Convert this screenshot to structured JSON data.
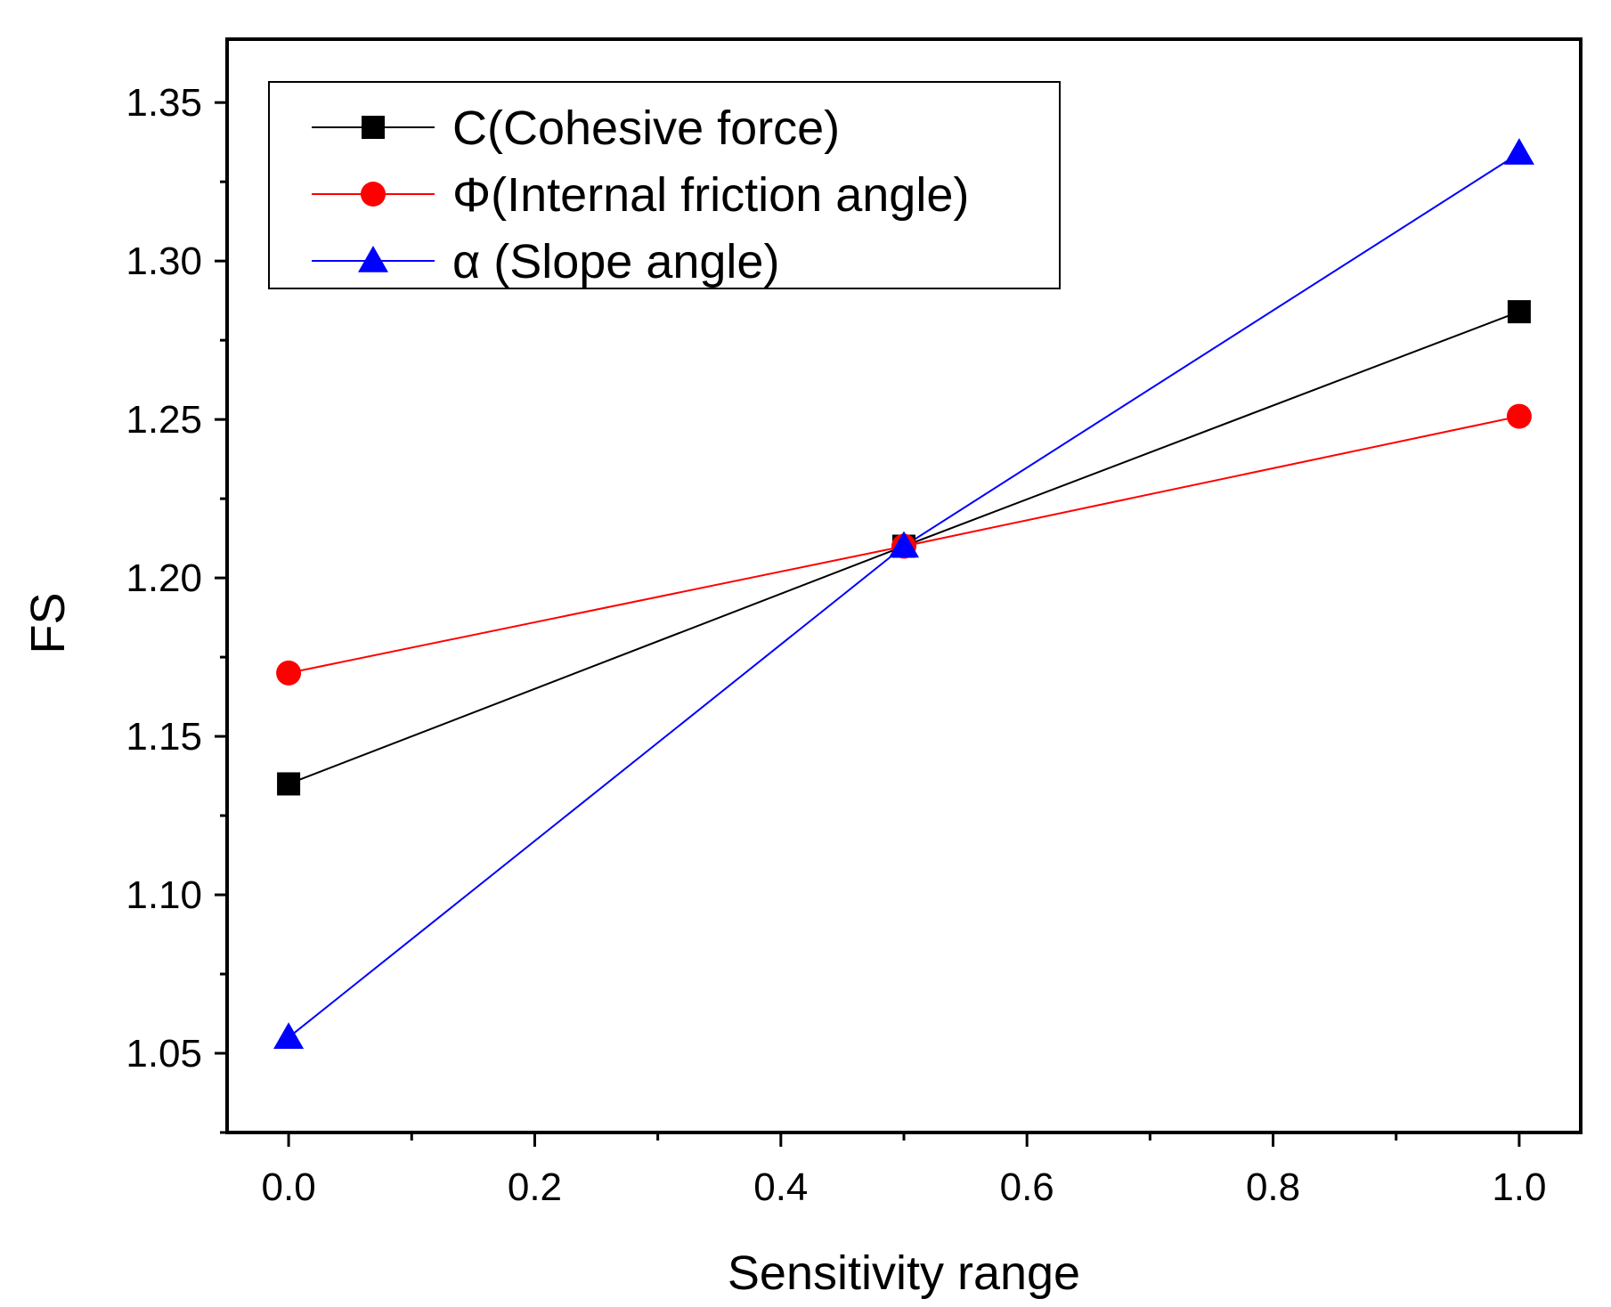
{
  "chart_data": {
    "type": "line",
    "title": "",
    "xlabel": "Sensitivity range",
    "ylabel": "FS",
    "xlim": [
      -0.05,
      1.05
    ],
    "ylim": [
      1.025,
      1.37
    ],
    "x": [
      0.0,
      0.5,
      1.0
    ],
    "xticks": [
      0.0,
      0.2,
      0.4,
      0.6,
      0.8,
      1.0
    ],
    "xtick_labels": [
      "0.0",
      "0.2",
      "0.4",
      "0.6",
      "0.8",
      "1.0"
    ],
    "yticks": [
      1.05,
      1.1,
      1.15,
      1.2,
      1.25,
      1.3,
      1.35
    ],
    "ytick_labels": [
      "1.05",
      "1.10",
      "1.15",
      "1.20",
      "1.25",
      "1.30",
      "1.35"
    ],
    "grid": false,
    "legend_position": "top-left",
    "series": [
      {
        "name": "C(Cohesive force)",
        "values": [
          1.135,
          1.21,
          1.284
        ],
        "color": "#000000",
        "marker": "square"
      },
      {
        "name": "Φ(Internal friction angle)",
        "values": [
          1.17,
          1.21,
          1.251
        ],
        "color": "#ff0000",
        "marker": "circle"
      },
      {
        "name": "α  (Slope angle)",
        "values": [
          1.055,
          1.21,
          1.334
        ],
        "color": "#0000ff",
        "marker": "triangle"
      }
    ]
  }
}
